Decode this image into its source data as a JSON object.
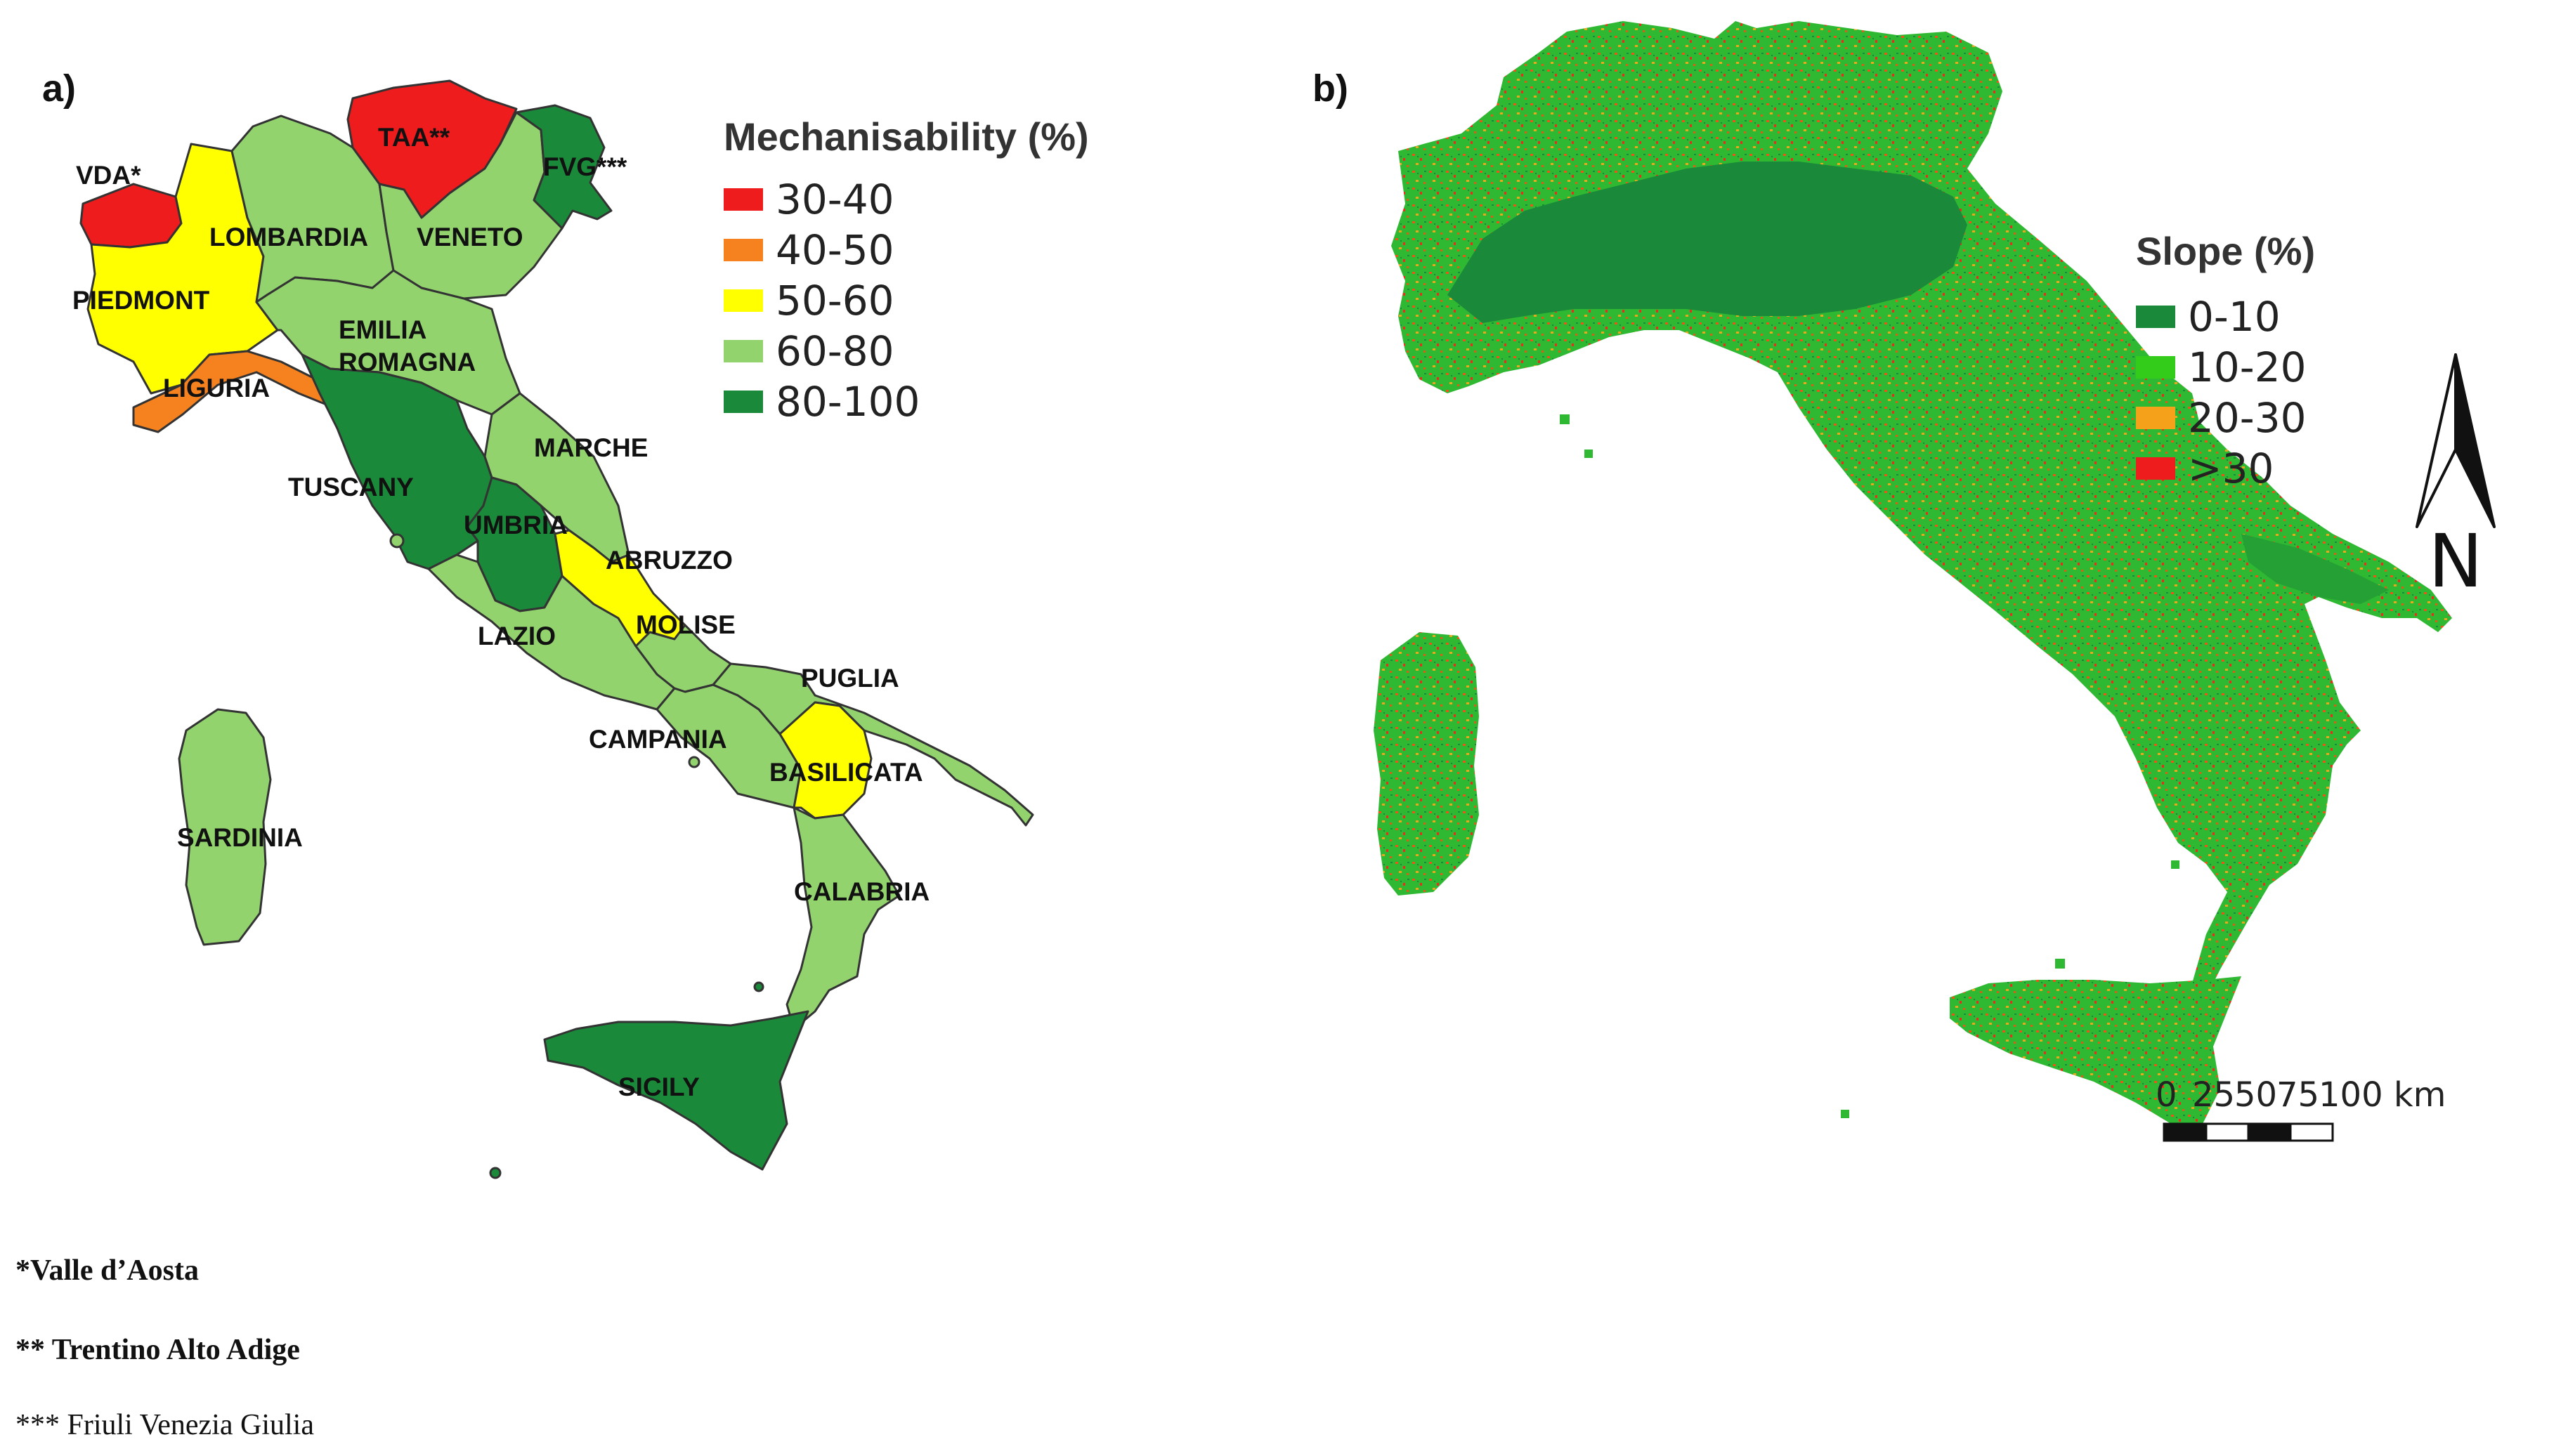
{
  "panel_a": {
    "label": "a)",
    "legend": {
      "title": "Mechanisability (%)",
      "items": [
        {
          "label": "30-40",
          "color": "#ee1c1c"
        },
        {
          "label": "40-50",
          "color": "#f5821f"
        },
        {
          "label": "50-60",
          "color": "#ffff00"
        },
        {
          "label": "60-80",
          "color": "#92d36e"
        },
        {
          "label": "80-100",
          "color": "#1a8a3a"
        }
      ]
    },
    "regions": {
      "vda": "VDA*",
      "taa": "TAA**",
      "fvg": "FVG***",
      "lombardia": "LOMBARDIA",
      "veneto": "VENETO",
      "piedmont": "PIEDMONT",
      "emilia": "EMILIA",
      "romagna": "ROMAGNA",
      "liguria": "LIGURIA",
      "marche": "MARCHE",
      "tuscany": "TUSCANY",
      "umbria": "UMBRIA",
      "abruzzo": "ABRUZZO",
      "molise": "MOLISE",
      "lazio": "LAZIO",
      "puglia": "PUGLIA",
      "campania": "CAMPANIA",
      "basilicata": "BASILICATA",
      "sardinia": "SARDINIA",
      "calabria": "CALABRIA",
      "sicily": "SICILY"
    }
  },
  "panel_b": {
    "label": "b)",
    "legend": {
      "title": "Slope (%)",
      "items": [
        {
          "label": "0-10",
          "color": "#1a8a3a"
        },
        {
          "label": "10-20",
          "color": "#33cc1a"
        },
        {
          "label": "20-30",
          "color": "#f5a21a"
        },
        {
          "label": ">30",
          "color": "#ee1c1c"
        }
      ]
    },
    "north_arrow": {
      "label": "N",
      "icon": "north-arrow-icon"
    },
    "scale_bar": {
      "ticks": [
        "0",
        "25",
        "50",
        "75",
        "100 km"
      ]
    }
  },
  "footnotes": {
    "vda": "*Valle d’Aosta",
    "taa": "** Trentino Alto Adige",
    "fvg": "*** Friuli Venezia Giulia"
  },
  "colors": {
    "outline": "#333333",
    "raster_base": "#1e9a3c"
  }
}
